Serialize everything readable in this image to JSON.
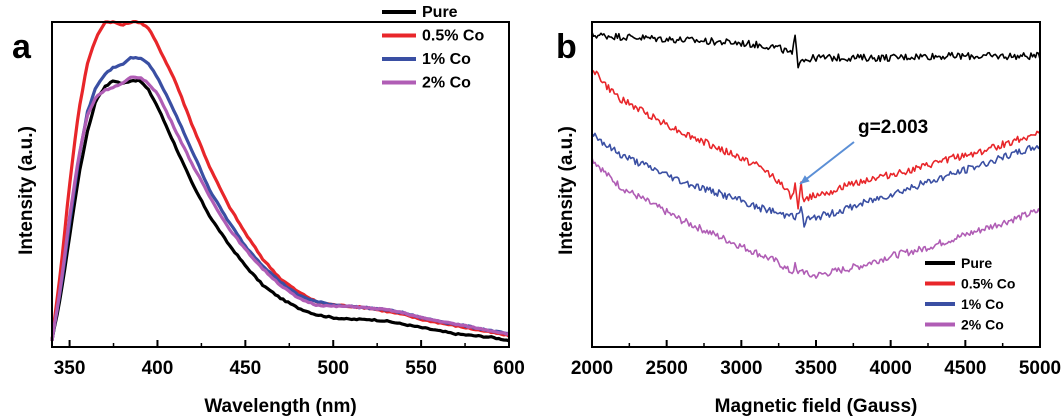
{
  "chart_data": [
    {
      "panel_label": "a",
      "type": "line",
      "xlabel": "Wavelength (nm)",
      "ylabel": "Intensity (a.u.)",
      "xlim": [
        340,
        600
      ],
      "ylim": [
        0,
        1.0
      ],
      "xticks": [
        350,
        400,
        450,
        500,
        550,
        600
      ],
      "y_tick_labels": false,
      "legend_position": "top-right",
      "series": [
        {
          "name": "Pure",
          "color": "#000000",
          "x": [
            340,
            345,
            350,
            355,
            360,
            365,
            370,
            375,
            380,
            385,
            390,
            395,
            400,
            410,
            420,
            430,
            440,
            450,
            460,
            470,
            480,
            490,
            500,
            510,
            520,
            530,
            540,
            550,
            560,
            570,
            580,
            590,
            600
          ],
          "y": [
            0.02,
            0.16,
            0.34,
            0.52,
            0.66,
            0.76,
            0.8,
            0.82,
            0.81,
            0.82,
            0.82,
            0.79,
            0.74,
            0.62,
            0.5,
            0.4,
            0.32,
            0.25,
            0.19,
            0.15,
            0.12,
            0.1,
            0.09,
            0.085,
            0.085,
            0.08,
            0.07,
            0.06,
            0.05,
            0.04,
            0.035,
            0.03,
            0.02
          ]
        },
        {
          "name": "0.5% Co",
          "color": "#e8262a",
          "x": [
            340,
            345,
            350,
            355,
            360,
            365,
            370,
            375,
            380,
            385,
            390,
            395,
            400,
            410,
            420,
            430,
            440,
            450,
            460,
            470,
            480,
            490,
            500,
            510,
            520,
            530,
            540,
            550,
            560,
            570,
            580,
            590,
            600
          ],
          "y": [
            0.02,
            0.24,
            0.5,
            0.72,
            0.87,
            0.95,
            1.0,
            1.0,
            0.99,
            1.0,
            1.0,
            0.98,
            0.93,
            0.82,
            0.68,
            0.55,
            0.44,
            0.35,
            0.27,
            0.21,
            0.17,
            0.14,
            0.13,
            0.125,
            0.12,
            0.11,
            0.1,
            0.085,
            0.075,
            0.065,
            0.055,
            0.045,
            0.035
          ]
        },
        {
          "name": "1% Co",
          "color": "#3a4fa3",
          "x": [
            340,
            345,
            350,
            355,
            360,
            365,
            370,
            375,
            380,
            385,
            390,
            395,
            400,
            410,
            420,
            430,
            440,
            450,
            460,
            470,
            480,
            490,
            500,
            510,
            520,
            530,
            540,
            550,
            560,
            570,
            580,
            590,
            600
          ],
          "y": [
            0.02,
            0.18,
            0.38,
            0.57,
            0.72,
            0.8,
            0.84,
            0.86,
            0.87,
            0.89,
            0.89,
            0.87,
            0.83,
            0.72,
            0.6,
            0.48,
            0.39,
            0.31,
            0.25,
            0.2,
            0.16,
            0.14,
            0.13,
            0.125,
            0.12,
            0.115,
            0.105,
            0.09,
            0.08,
            0.07,
            0.06,
            0.05,
            0.04
          ]
        },
        {
          "name": "2% Co",
          "color": "#b05db5",
          "x": [
            340,
            345,
            350,
            355,
            360,
            365,
            370,
            375,
            380,
            385,
            390,
            395,
            400,
            410,
            420,
            430,
            440,
            450,
            460,
            470,
            480,
            490,
            500,
            510,
            520,
            530,
            540,
            550,
            560,
            570,
            580,
            590,
            600
          ],
          "y": [
            0.02,
            0.19,
            0.4,
            0.58,
            0.71,
            0.77,
            0.79,
            0.8,
            0.81,
            0.83,
            0.83,
            0.81,
            0.78,
            0.67,
            0.56,
            0.46,
            0.37,
            0.3,
            0.24,
            0.19,
            0.15,
            0.13,
            0.125,
            0.125,
            0.12,
            0.115,
            0.105,
            0.09,
            0.08,
            0.07,
            0.06,
            0.05,
            0.04
          ]
        }
      ]
    },
    {
      "panel_label": "b",
      "type": "line",
      "xlabel": "Magnetic field (Gauss)",
      "ylabel": "Intensity (a.u.)",
      "xlim": [
        2000,
        5000
      ],
      "ylim": [
        0,
        1.0
      ],
      "xticks": [
        2000,
        2500,
        3000,
        3500,
        4000,
        4500,
        5000
      ],
      "y_tick_labels": false,
      "legend_position": "bottom-right",
      "annotation": {
        "text": "g=2.003",
        "x": 3380,
        "y": 0.52
      },
      "series": [
        {
          "name": "Pure",
          "color": "#000000",
          "x": [
            2000,
            2200,
            2400,
            2600,
            2800,
            3000,
            3100,
            3200,
            3250,
            3300,
            3340,
            3360,
            3380,
            3400,
            3420,
            3450,
            3500,
            3600,
            3800,
            4000,
            4200,
            4400,
            4600,
            4800,
            5000
          ],
          "y": [
            0.96,
            0.955,
            0.95,
            0.945,
            0.94,
            0.935,
            0.93,
            0.925,
            0.92,
            0.91,
            0.9,
            0.95,
            0.87,
            0.89,
            0.885,
            0.885,
            0.89,
            0.89,
            0.89,
            0.89,
            0.895,
            0.895,
            0.895,
            0.895,
            0.895
          ]
        },
        {
          "name": "0.5% Co",
          "color": "#e8262a",
          "x": [
            2000,
            2100,
            2200,
            2400,
            2600,
            2800,
            3000,
            3100,
            3200,
            3250,
            3300,
            3340,
            3360,
            3380,
            3400,
            3420,
            3450,
            3500,
            3600,
            3800,
            4000,
            4200,
            4400,
            4600,
            4800,
            5000
          ],
          "y": [
            0.86,
            0.8,
            0.76,
            0.71,
            0.66,
            0.62,
            0.58,
            0.56,
            0.53,
            0.51,
            0.48,
            0.46,
            0.51,
            0.43,
            0.5,
            0.44,
            0.46,
            0.47,
            0.48,
            0.51,
            0.53,
            0.55,
            0.58,
            0.6,
            0.63,
            0.66
          ]
        },
        {
          "name": "1% Co",
          "color": "#3a4fa3",
          "x": [
            2000,
            2100,
            2200,
            2400,
            2600,
            2800,
            3000,
            3100,
            3200,
            3250,
            3300,
            3340,
            3360,
            3400,
            3420,
            3440,
            3460,
            3500,
            3600,
            3800,
            4000,
            4200,
            4400,
            4600,
            4800,
            5000
          ],
          "y": [
            0.66,
            0.62,
            0.59,
            0.55,
            0.51,
            0.48,
            0.45,
            0.43,
            0.42,
            0.41,
            0.405,
            0.42,
            0.39,
            0.43,
            0.37,
            0.4,
            0.39,
            0.4,
            0.41,
            0.44,
            0.47,
            0.5,
            0.53,
            0.56,
            0.59,
            0.62
          ]
        },
        {
          "name": "2% Co",
          "color": "#b05db5",
          "x": [
            2000,
            2100,
            2200,
            2400,
            2600,
            2800,
            3000,
            3100,
            3200,
            3250,
            3300,
            3340,
            3360,
            3380,
            3400,
            3450,
            3500,
            3600,
            3800,
            4000,
            4200,
            4400,
            4600,
            4800,
            5000
          ],
          "y": [
            0.58,
            0.53,
            0.49,
            0.44,
            0.39,
            0.35,
            0.31,
            0.29,
            0.27,
            0.26,
            0.24,
            0.23,
            0.25,
            0.22,
            0.24,
            0.22,
            0.22,
            0.23,
            0.25,
            0.28,
            0.3,
            0.33,
            0.36,
            0.39,
            0.42
          ]
        }
      ]
    }
  ]
}
